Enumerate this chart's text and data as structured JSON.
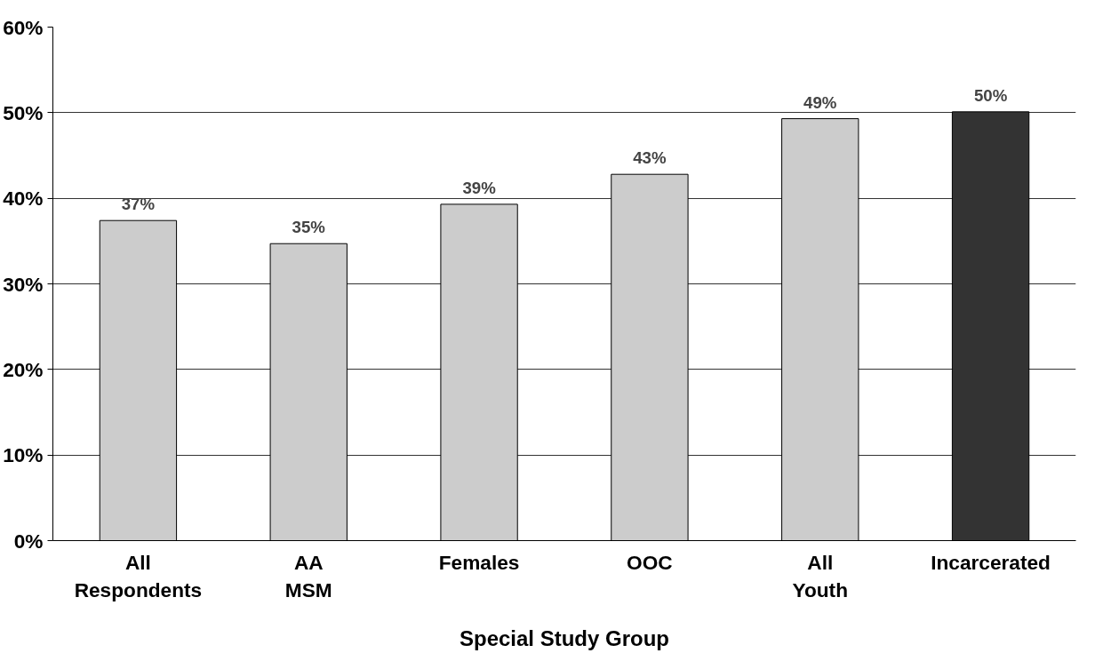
{
  "chart_data": {
    "type": "bar",
    "xlabel": "Special Study Group",
    "categories": [
      "All Respondents",
      "AA MSM",
      "Females",
      "OOC",
      "All Youth",
      "Incarcerated"
    ],
    "values": [
      37.4,
      34.7,
      39.3,
      42.8,
      49.3,
      50.1
    ],
    "value_labels": [
      "37%",
      "35%",
      "39%",
      "43%",
      "49%",
      "50%"
    ],
    "colors": [
      "#cccccc",
      "#cccccc",
      "#cccccc",
      "#cccccc",
      "#cccccc",
      "#333333"
    ],
    "ylim": [
      0,
      60
    ],
    "yticks": [
      {
        "value": 0,
        "label": "0%"
      },
      {
        "value": 10,
        "label": "10%"
      },
      {
        "value": 20,
        "label": "20%"
      },
      {
        "value": 30,
        "label": "30%"
      },
      {
        "value": 40,
        "label": "40%"
      },
      {
        "value": 50,
        "label": "50%"
      },
      {
        "value": 60,
        "label": "60%"
      }
    ],
    "grid": "y"
  }
}
